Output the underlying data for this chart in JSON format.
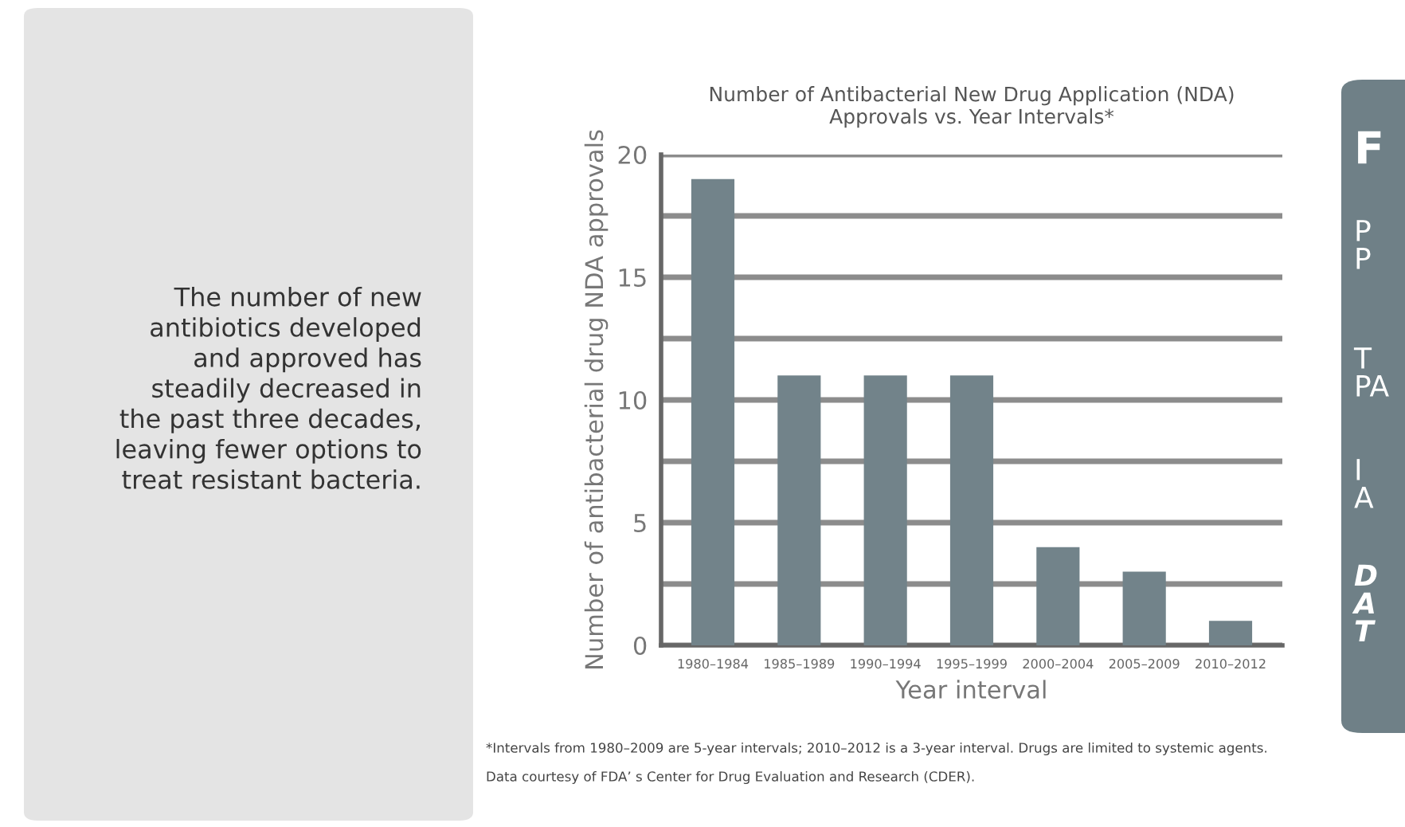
{
  "chart_data": {
    "type": "bar",
    "title": "Number of Antibacterial New Drug Application (NDA)\nApprovals vs. Year Intervals*",
    "xlabel": "Year interval",
    "ylabel": "Number of antibacterial drug NDA approvals",
    "categories": [
      "1980–1984",
      "1985–1989",
      "1990–1994",
      "1995–1999",
      "2000–2004",
      "2005–2009",
      "2010–2012"
    ],
    "values": [
      19,
      11,
      11,
      11,
      4,
      3,
      1
    ],
    "color": "#72838a",
    "ylim": [
      0,
      20
    ],
    "yticks": [
      0,
      {
        "value": 2.5,
        "label": null
      },
      5,
      {
        "value": 7.5,
        "label": null
      },
      10,
      {
        "value": 12.5,
        "label": null
      },
      15,
      {
        "value": 17.5,
        "label": null
      },
      20
    ],
    "grid": "y",
    "annotations": [
      "The number of new\nantibiotics developed\nand approved has\nsteadily decreased in\nthe past three decades,\nleaving fewer options to\ntreat resistant bacteria.",
      "*Intervals from 1980–2009 are 5-year intervals; 2010–2012 is a 3-year interval. Drugs are limited to systemic agents.",
      "Data courtesy of FDA’ s Center for Drug Evaluation and Research (CDER).",
      "F",
      "P\nP",
      "T\nPA",
      "I\nA",
      "D\nA\nT"
    ]
  }
}
